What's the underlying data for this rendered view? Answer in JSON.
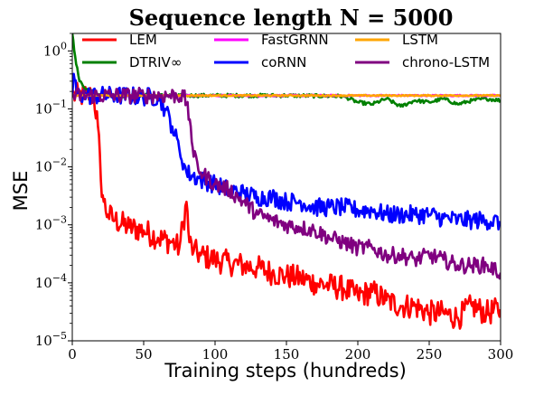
{
  "chart_data": {
    "type": "line",
    "title": "Sequence length N = 5000",
    "xlabel": "Training steps (hundreds)",
    "ylabel": "MSE",
    "xlim": [
      0,
      300
    ],
    "ylim": [
      1e-05,
      2
    ],
    "yscale": "log",
    "xticks": [
      "0",
      "50",
      "100",
      "150",
      "200",
      "250",
      "300"
    ],
    "yticks": [
      {
        "value": 1,
        "base": "10",
        "exp": "0"
      },
      {
        "value": 0.1,
        "base": "10",
        "exp": "−1"
      },
      {
        "value": 0.01,
        "base": "10",
        "exp": "−2"
      },
      {
        "value": 0.001,
        "base": "10",
        "exp": "−3"
      },
      {
        "value": 0.0001,
        "base": "10",
        "exp": "−4"
      },
      {
        "value": 1e-05,
        "base": "10",
        "exp": "−5"
      }
    ],
    "grid": false,
    "legend_position": "top",
    "series": [
      {
        "name": "LEM",
        "color": "#ff0000",
        "x": [
          0,
          5,
          10,
          15,
          18,
          20,
          22,
          25,
          30,
          40,
          50,
          60,
          70,
          75,
          80,
          82,
          85,
          90,
          100,
          110,
          120,
          130,
          140,
          150,
          160,
          170,
          180,
          190,
          200,
          210,
          220,
          230,
          240,
          250,
          260,
          270,
          280,
          290,
          300
        ],
        "y": [
          0.17,
          0.17,
          0.17,
          0.17,
          0.05,
          0.006,
          0.0025,
          0.0015,
          0.0012,
          0.0009,
          0.0008,
          0.0006,
          0.0005,
          0.0004,
          0.0025,
          0.0005,
          0.00035,
          0.0003,
          0.00025,
          0.00022,
          0.0002,
          0.00018,
          0.00015,
          0.00013,
          0.00012,
          0.0001,
          9e-05,
          8e-05,
          6e-05,
          7e-05,
          5e-05,
          4e-05,
          4e-05,
          3e-05,
          3e-05,
          2.5e-05,
          4e-05,
          3e-05,
          3.5e-05
        ]
      },
      {
        "name": "DTRIV∞",
        "color": "#008000",
        "x": [
          0,
          2,
          5,
          10,
          15,
          20,
          30,
          50,
          100,
          150,
          190,
          200,
          210,
          220,
          230,
          240,
          250,
          260,
          270,
          280,
          290,
          300
        ],
        "y": [
          2,
          0.8,
          0.3,
          0.22,
          0.2,
          0.18,
          0.17,
          0.17,
          0.17,
          0.17,
          0.165,
          0.13,
          0.12,
          0.15,
          0.11,
          0.14,
          0.13,
          0.15,
          0.12,
          0.14,
          0.15,
          0.14
        ]
      },
      {
        "name": "FastGRNN",
        "color": "#ff00ff",
        "x": [
          0,
          50,
          100,
          150,
          200,
          250,
          300
        ],
        "y": [
          0.17,
          0.17,
          0.17,
          0.17,
          0.17,
          0.17,
          0.17
        ]
      },
      {
        "name": "coRNN",
        "color": "#0000ff",
        "x": [
          0,
          1,
          3,
          10,
          30,
          60,
          65,
          70,
          75,
          80,
          90,
          100,
          110,
          120,
          130,
          140,
          150,
          160,
          170,
          180,
          190,
          200,
          210,
          220,
          230,
          240,
          250,
          260,
          270,
          280,
          290,
          300
        ],
        "y": [
          0.17,
          0.4,
          0.18,
          0.17,
          0.17,
          0.16,
          0.1,
          0.05,
          0.02,
          0.008,
          0.006,
          0.005,
          0.004,
          0.0035,
          0.003,
          0.003,
          0.0025,
          0.0025,
          0.002,
          0.002,
          0.002,
          0.0018,
          0.0018,
          0.0015,
          0.0015,
          0.0015,
          0.0015,
          0.0013,
          0.0012,
          0.0012,
          0.0012,
          0.0011
        ]
      },
      {
        "name": "LSTM",
        "color": "#ffa500",
        "x": [
          0,
          50,
          100,
          150,
          200,
          250,
          300
        ],
        "y": [
          0.17,
          0.17,
          0.17,
          0.17,
          0.17,
          0.17,
          0.17
        ]
      },
      {
        "name": "chrono-LSTM",
        "color": "#800080",
        "x": [
          0,
          50,
          78,
          80,
          83,
          85,
          90,
          100,
          110,
          120,
          130,
          140,
          150,
          160,
          170,
          180,
          190,
          200,
          210,
          220,
          230,
          240,
          250,
          260,
          270,
          280,
          290,
          300
        ],
        "y": [
          0.17,
          0.17,
          0.17,
          0.12,
          0.05,
          0.015,
          0.008,
          0.005,
          0.004,
          0.0025,
          0.0015,
          0.0012,
          0.001,
          0.0009,
          0.0008,
          0.0006,
          0.0005,
          0.0004,
          0.0004,
          0.0003,
          0.0003,
          0.00025,
          0.0003,
          0.00025,
          0.0002,
          0.0002,
          0.0002,
          0.00015
        ]
      }
    ]
  }
}
